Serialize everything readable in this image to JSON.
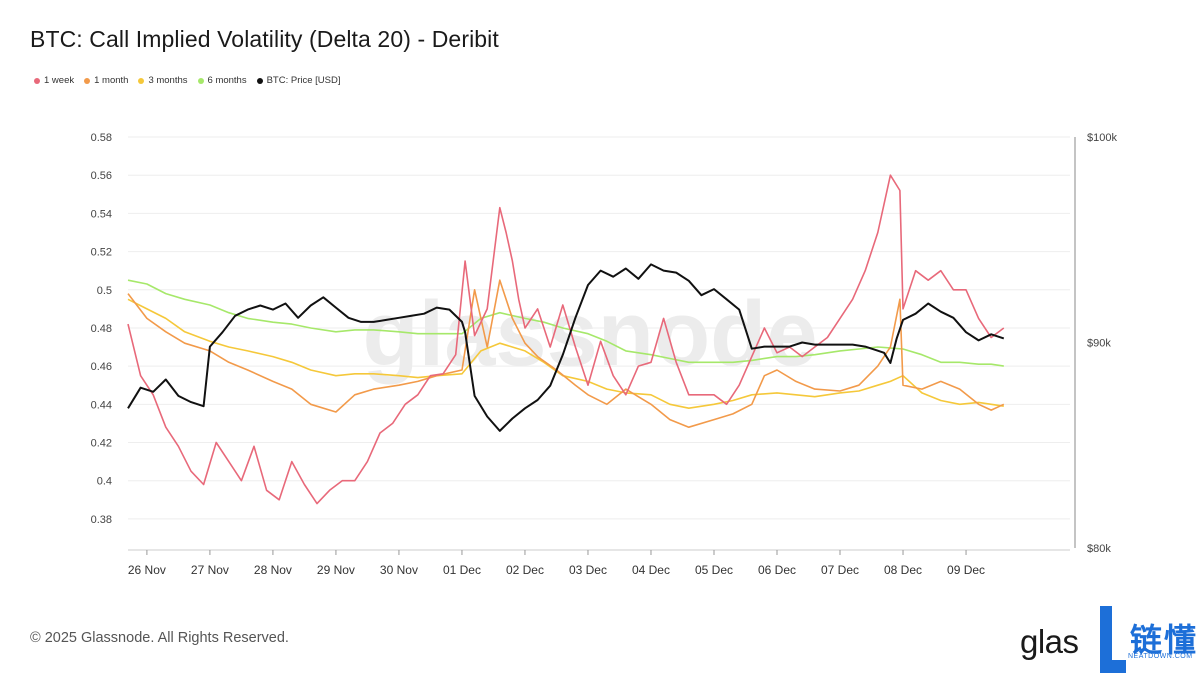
{
  "title": "BTC: Call Implied Volatility (Delta 20) - Deribit",
  "legend": [
    {
      "label": "1 week",
      "color": "#e8697a"
    },
    {
      "label": "1 month",
      "color": "#f29a4a"
    },
    {
      "label": "3 months",
      "color": "#f5c83a"
    },
    {
      "label": "6 months",
      "color": "#a6e86a"
    },
    {
      "label": "BTC: Price [USD]",
      "color": "#111111"
    }
  ],
  "watermark": "glassnode",
  "footer": {
    "copyright": "© 2025 Glassnode. All Rights Reserved."
  },
  "logo": {
    "text": "glas",
    "badge_cn": "链懂",
    "badge_en": "NEATDOWN.COM"
  },
  "chart_data": {
    "type": "line",
    "title": "BTC: Call Implied Volatility (Delta 20) - Deribit",
    "x_start_day": 25.7,
    "x_end_day": 40.65,
    "x_ticks": [
      {
        "day": 26,
        "label": "26 Nov"
      },
      {
        "day": 27,
        "label": "27 Nov"
      },
      {
        "day": 28,
        "label": "28 Nov"
      },
      {
        "day": 29,
        "label": "29 Nov"
      },
      {
        "day": 30,
        "label": "30 Nov"
      },
      {
        "day": 31,
        "label": "01 Dec"
      },
      {
        "day": 32,
        "label": "02 Dec"
      },
      {
        "day": 33,
        "label": "03 Dec"
      },
      {
        "day": 34,
        "label": "04 Dec"
      },
      {
        "day": 35,
        "label": "05 Dec"
      },
      {
        "day": 36,
        "label": "06 Dec"
      },
      {
        "day": 37,
        "label": "07 Dec"
      },
      {
        "day": 38,
        "label": "08 Dec"
      },
      {
        "day": 39,
        "label": "09 Dec"
      }
    ],
    "y_left": {
      "ylim": [
        0.37,
        0.58
      ],
      "ticks": [
        0.38,
        0.4,
        0.42,
        0.44,
        0.46,
        0.48,
        0.5,
        0.52,
        0.54,
        0.56,
        0.58
      ],
      "tick_labels": [
        "0.38",
        "0.4",
        "0.42",
        "0.44",
        "0.46",
        "0.48",
        "0.5",
        "0.52",
        "0.54",
        "0.56",
        "0.58"
      ]
    },
    "y_right": {
      "ylim": [
        80000,
        100000
      ],
      "ticks": [
        80000,
        90000,
        100000
      ],
      "tick_labels": [
        "$80k",
        "$90k",
        "$100k"
      ]
    },
    "series": [
      {
        "name": "1 week",
        "axis": "left",
        "color": "#e8697a",
        "x": [
          25.7,
          25.9,
          26.1,
          26.3,
          26.5,
          26.7,
          26.9,
          27.1,
          27.3,
          27.5,
          27.7,
          27.9,
          28.1,
          28.3,
          28.5,
          28.7,
          28.9,
          29.1,
          29.3,
          29.5,
          29.7,
          29.9,
          30.1,
          30.3,
          30.5,
          30.7,
          30.9,
          31.05,
          31.2,
          31.4,
          31.6,
          31.7,
          31.8,
          31.9,
          32.0,
          32.2,
          32.4,
          32.6,
          32.8,
          33.0,
          33.2,
          33.4,
          33.6,
          33.8,
          34.0,
          34.2,
          34.4,
          34.6,
          34.8,
          35.0,
          35.2,
          35.4,
          35.6,
          35.8,
          36.0,
          36.2,
          36.4,
          36.6,
          36.8,
          37.0,
          37.2,
          37.4,
          37.6,
          37.8,
          37.95,
          38.0,
          38.2,
          38.4,
          38.6,
          38.8,
          39.0,
          39.2,
          39.4,
          39.6
        ],
        "y": [
          0.482,
          0.455,
          0.445,
          0.428,
          0.418,
          0.405,
          0.398,
          0.42,
          0.41,
          0.4,
          0.418,
          0.395,
          0.39,
          0.41,
          0.398,
          0.388,
          0.395,
          0.4,
          0.4,
          0.41,
          0.425,
          0.43,
          0.44,
          0.445,
          0.455,
          0.456,
          0.466,
          0.515,
          0.476,
          0.49,
          0.543,
          0.53,
          0.515,
          0.495,
          0.48,
          0.49,
          0.47,
          0.492,
          0.47,
          0.45,
          0.473,
          0.455,
          0.445,
          0.46,
          0.462,
          0.485,
          0.462,
          0.445,
          0.445,
          0.445,
          0.44,
          0.45,
          0.465,
          0.48,
          0.467,
          0.47,
          0.465,
          0.47,
          0.475,
          0.485,
          0.495,
          0.51,
          0.53,
          0.56,
          0.552,
          0.49,
          0.51,
          0.505,
          0.51,
          0.5,
          0.5,
          0.485,
          0.475,
          0.48
        ]
      },
      {
        "name": "1 month",
        "axis": "left",
        "color": "#f29a4a",
        "x": [
          25.7,
          26.0,
          26.3,
          26.6,
          27.0,
          27.3,
          27.6,
          28.0,
          28.3,
          28.6,
          29.0,
          29.3,
          29.6,
          30.0,
          30.3,
          30.6,
          31.0,
          31.2,
          31.4,
          31.6,
          31.8,
          32.0,
          32.2,
          32.5,
          32.8,
          33.0,
          33.3,
          33.6,
          34.0,
          34.3,
          34.6,
          35.0,
          35.3,
          35.6,
          35.8,
          36.0,
          36.3,
          36.6,
          37.0,
          37.3,
          37.6,
          37.8,
          37.95,
          38.0,
          38.3,
          38.6,
          38.9,
          39.2,
          39.4,
          39.6
        ],
        "y": [
          0.498,
          0.485,
          0.478,
          0.472,
          0.468,
          0.462,
          0.458,
          0.452,
          0.448,
          0.44,
          0.436,
          0.445,
          0.448,
          0.45,
          0.452,
          0.455,
          0.458,
          0.5,
          0.47,
          0.505,
          0.485,
          0.472,
          0.465,
          0.458,
          0.45,
          0.445,
          0.44,
          0.448,
          0.44,
          0.432,
          0.428,
          0.432,
          0.435,
          0.44,
          0.455,
          0.458,
          0.452,
          0.448,
          0.447,
          0.45,
          0.46,
          0.47,
          0.495,
          0.45,
          0.448,
          0.452,
          0.448,
          0.44,
          0.437,
          0.44
        ]
      },
      {
        "name": "3 months",
        "axis": "left",
        "color": "#f5c83a",
        "x": [
          25.7,
          26.0,
          26.3,
          26.6,
          27.0,
          27.3,
          27.6,
          28.0,
          28.3,
          28.6,
          29.0,
          29.3,
          29.6,
          30.0,
          30.3,
          30.6,
          31.0,
          31.3,
          31.6,
          32.0,
          32.3,
          32.6,
          33.0,
          33.3,
          33.6,
          34.0,
          34.3,
          34.6,
          35.0,
          35.3,
          35.6,
          36.0,
          36.3,
          36.6,
          37.0,
          37.3,
          37.6,
          37.8,
          38.0,
          38.3,
          38.6,
          38.9,
          39.2,
          39.4,
          39.6
        ],
        "y": [
          0.495,
          0.49,
          0.485,
          0.478,
          0.473,
          0.47,
          0.468,
          0.465,
          0.462,
          0.458,
          0.455,
          0.456,
          0.456,
          0.455,
          0.454,
          0.455,
          0.456,
          0.468,
          0.472,
          0.468,
          0.462,
          0.455,
          0.452,
          0.448,
          0.446,
          0.445,
          0.44,
          0.438,
          0.44,
          0.442,
          0.445,
          0.446,
          0.445,
          0.444,
          0.446,
          0.447,
          0.45,
          0.452,
          0.455,
          0.446,
          0.442,
          0.44,
          0.441,
          0.44,
          0.439
        ]
      },
      {
        "name": "6 months",
        "axis": "left",
        "color": "#a6e86a",
        "x": [
          25.7,
          26.0,
          26.3,
          26.6,
          27.0,
          27.3,
          27.6,
          28.0,
          28.3,
          28.6,
          29.0,
          29.3,
          29.6,
          30.0,
          30.3,
          30.6,
          31.0,
          31.3,
          31.6,
          32.0,
          32.3,
          32.6,
          33.0,
          33.3,
          33.6,
          34.0,
          34.3,
          34.6,
          35.0,
          35.3,
          35.6,
          36.0,
          36.3,
          36.6,
          37.0,
          37.3,
          37.6,
          38.0,
          38.3,
          38.6,
          38.9,
          39.2,
          39.4,
          39.6
        ],
        "y": [
          0.505,
          0.503,
          0.498,
          0.495,
          0.492,
          0.488,
          0.485,
          0.483,
          0.482,
          0.48,
          0.478,
          0.479,
          0.479,
          0.478,
          0.477,
          0.477,
          0.477,
          0.485,
          0.488,
          0.485,
          0.483,
          0.48,
          0.477,
          0.473,
          0.468,
          0.466,
          0.464,
          0.462,
          0.462,
          0.462,
          0.463,
          0.465,
          0.465,
          0.466,
          0.468,
          0.469,
          0.47,
          0.469,
          0.466,
          0.462,
          0.462,
          0.461,
          0.461,
          0.46
        ]
      },
      {
        "name": "BTC: Price [USD]",
        "axis": "right",
        "color": "#111111",
        "x": [
          25.7,
          25.9,
          26.1,
          26.3,
          26.5,
          26.7,
          26.9,
          27.0,
          27.2,
          27.4,
          27.6,
          27.8,
          28.0,
          28.2,
          28.4,
          28.6,
          28.8,
          29.0,
          29.2,
          29.4,
          29.6,
          29.8,
          30.0,
          30.2,
          30.4,
          30.6,
          30.8,
          31.0,
          31.05,
          31.2,
          31.4,
          31.6,
          31.8,
          32.0,
          32.2,
          32.4,
          32.6,
          32.8,
          33.0,
          33.2,
          33.4,
          33.6,
          33.8,
          34.0,
          34.2,
          34.4,
          34.6,
          34.8,
          35.0,
          35.2,
          35.4,
          35.6,
          35.8,
          36.0,
          36.2,
          36.4,
          36.6,
          36.8,
          37.0,
          37.2,
          37.4,
          37.6,
          37.7,
          37.8,
          37.9,
          38.0,
          38.2,
          38.4,
          38.6,
          38.8,
          39.0,
          39.2,
          39.4,
          39.6
        ],
        "y": [
          86800,
          87800,
          87600,
          88200,
          87400,
          87100,
          86900,
          89800,
          90500,
          91300,
          91600,
          91800,
          91600,
          91900,
          91200,
          91800,
          92200,
          91700,
          91200,
          91000,
          91000,
          91100,
          91200,
          91300,
          91400,
          91700,
          91600,
          91000,
          90500,
          87400,
          86400,
          85700,
          86300,
          86800,
          87200,
          87900,
          89400,
          91200,
          92800,
          93500,
          93200,
          93600,
          93100,
          93800,
          93500,
          93400,
          93000,
          92300,
          92600,
          92100,
          91600,
          89700,
          89800,
          89800,
          89800,
          90000,
          89900,
          89900,
          89900,
          89900,
          89800,
          89600,
          89500,
          89000,
          90200,
          91100,
          91400,
          91900,
          91500,
          91200,
          90500,
          90100,
          90400,
          90200
        ]
      }
    ]
  }
}
